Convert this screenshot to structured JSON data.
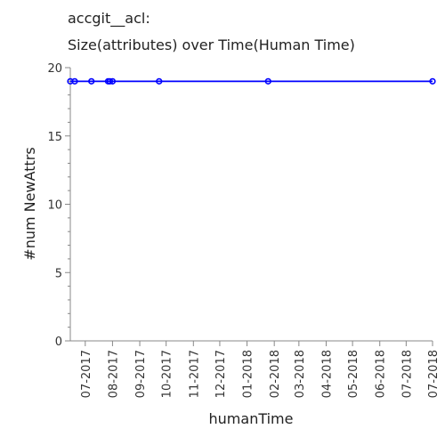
{
  "chart_data": {
    "type": "line",
    "title_line1": "accgit__acl:",
    "title_line2": "Size(attributes) over Time(Human Time)",
    "xlabel": "humanTime",
    "ylabel": "#num NewAttrs",
    "ylim": [
      0,
      20
    ],
    "yticks": [
      "0",
      "5",
      "10",
      "15",
      "20"
    ],
    "xticks": [
      "07-2017",
      "08-2017",
      "09-2017",
      "10-2017",
      "11-2017",
      "12-2017",
      "01-2018",
      "02-2018",
      "03-2018",
      "04-2018",
      "05-2018",
      "06-2018",
      "07-2018",
      "07-2018"
    ],
    "series": [
      {
        "color": "#0000ff",
        "points": [
          {
            "x": "2017-06-14",
            "y": 19
          },
          {
            "x": "2017-06-19",
            "y": 19
          },
          {
            "x": "2017-07-08",
            "y": 19
          },
          {
            "x": "2017-07-27",
            "y": 19
          },
          {
            "x": "2017-07-29",
            "y": 19
          },
          {
            "x": "2017-08-01",
            "y": 19
          },
          {
            "x": "2017-09-23",
            "y": 19
          },
          {
            "x": "2018-01-25",
            "y": 19
          },
          {
            "x": "2018-07-31",
            "y": 19
          }
        ]
      }
    ],
    "grid": false
  }
}
